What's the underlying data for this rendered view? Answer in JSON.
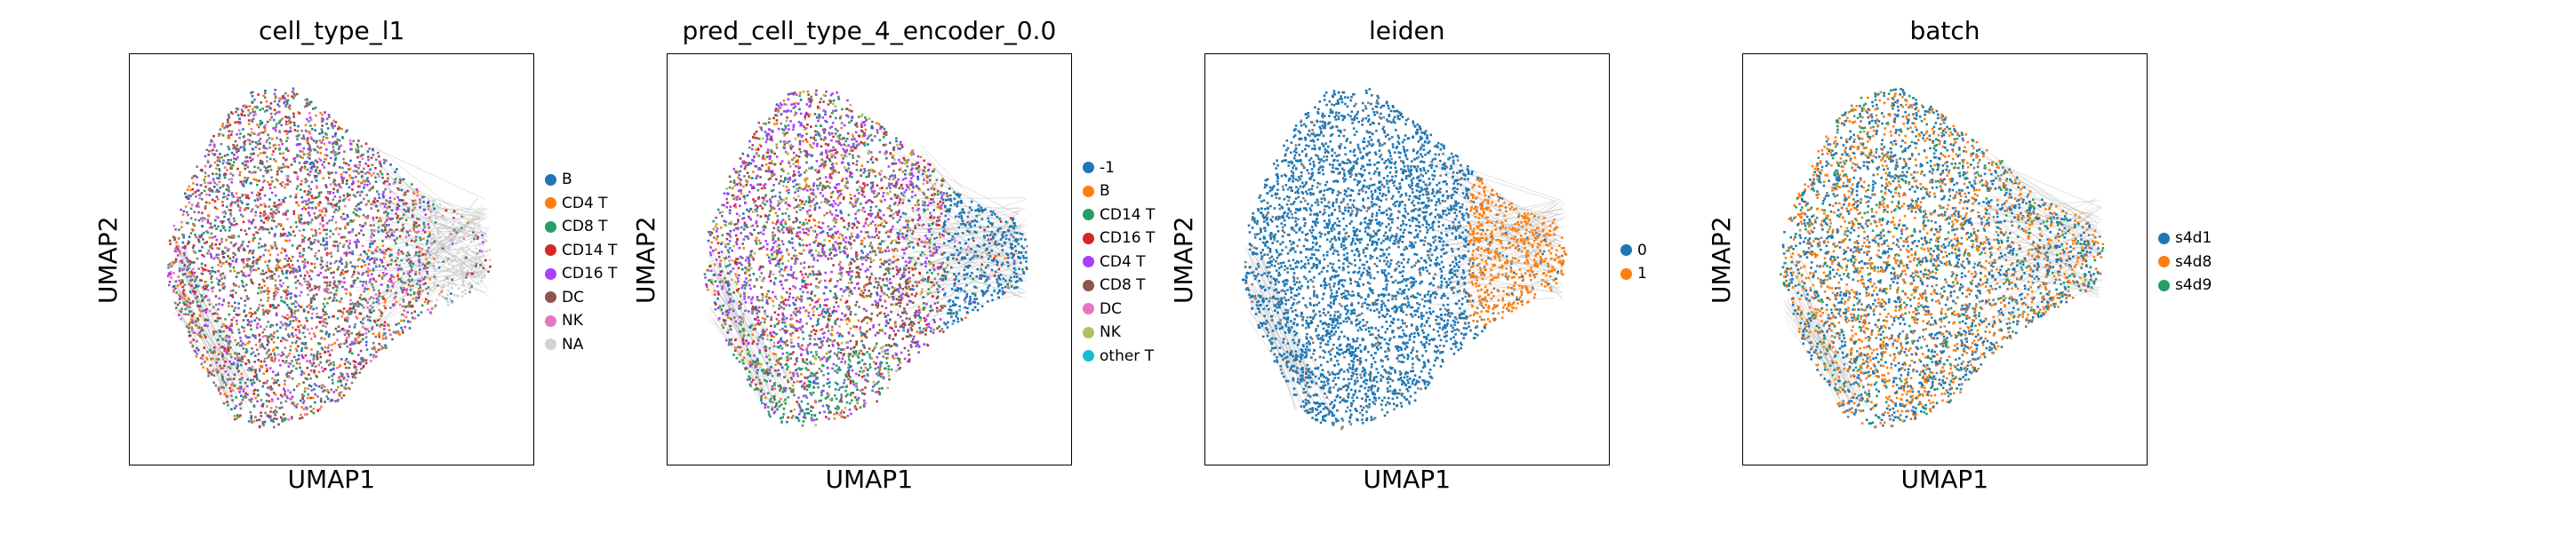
{
  "chart_data": [
    {
      "type": "scatter",
      "title": "cell_type_l1",
      "xlabel": "UMAP1",
      "ylabel": "UMAP2",
      "grid": false,
      "legend_position": "right",
      "legend": [
        {
          "label": "B",
          "color": "#1f77b4"
        },
        {
          "label": "CD4 T",
          "color": "#ff7f0e"
        },
        {
          "label": "CD8 T",
          "color": "#279e68"
        },
        {
          "label": "CD14 T",
          "color": "#d62728"
        },
        {
          "label": "CD16 T",
          "color": "#aa40fc"
        },
        {
          "label": "DC",
          "color": "#8c564b"
        },
        {
          "label": "NK",
          "color": "#e377c2"
        },
        {
          "label": "NA",
          "color": "#d3d3d3"
        }
      ]
    },
    {
      "type": "scatter",
      "title": "pred_cell_type_4_encoder_0.0",
      "xlabel": "UMAP1",
      "ylabel": "UMAP2",
      "grid": false,
      "legend_position": "right",
      "legend": [
        {
          "label": "-1",
          "color": "#1f77b4"
        },
        {
          "label": "B",
          "color": "#ff7f0e"
        },
        {
          "label": "CD14 T",
          "color": "#279e68"
        },
        {
          "label": "CD16 T",
          "color": "#d62728"
        },
        {
          "label": "CD4 T",
          "color": "#aa40fc"
        },
        {
          "label": "CD8 T",
          "color": "#8c564b"
        },
        {
          "label": "DC",
          "color": "#e377c2"
        },
        {
          "label": "NK",
          "color": "#b5bd61"
        },
        {
          "label": "other T",
          "color": "#17becf"
        }
      ]
    },
    {
      "type": "scatter",
      "title": "leiden",
      "xlabel": "UMAP1",
      "ylabel": "UMAP2",
      "grid": false,
      "legend_position": "right",
      "legend": [
        {
          "label": "0",
          "color": "#1f77b4"
        },
        {
          "label": "1",
          "color": "#ff7f0e"
        }
      ]
    },
    {
      "type": "scatter",
      "title": "batch",
      "xlabel": "UMAP1",
      "ylabel": "UMAP2",
      "grid": false,
      "legend_position": "right",
      "legend": [
        {
          "label": "s4d1",
          "color": "#1f77b4"
        },
        {
          "label": "s4d8",
          "color": "#ff7f0e"
        },
        {
          "label": "s4d9",
          "color": "#279e68"
        }
      ]
    }
  ]
}
